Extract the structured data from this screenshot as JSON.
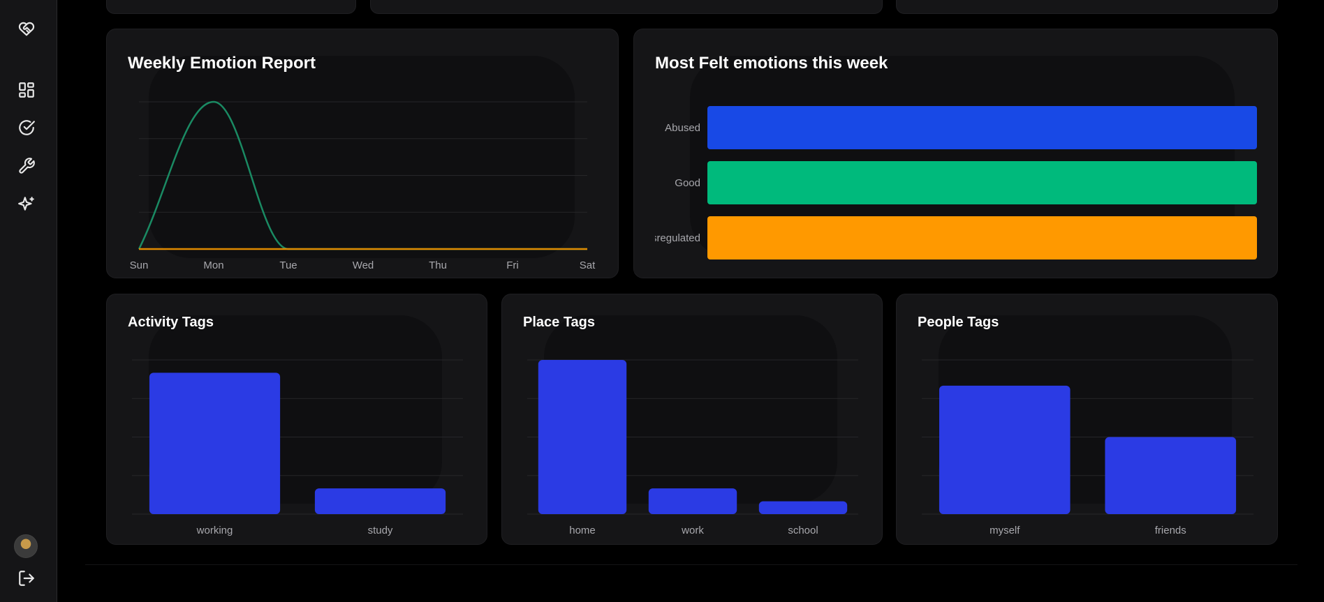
{
  "sidebar": {
    "nav": [
      {
        "name": "dashboard-icon"
      },
      {
        "name": "check-circle-icon"
      },
      {
        "name": "wrench-icon"
      },
      {
        "name": "sparkles-icon"
      }
    ],
    "logo": "heart-handshake-icon",
    "logout": "logout-icon"
  },
  "cards": {
    "weekly": {
      "title": "Weekly Emotion Report"
    },
    "most_felt": {
      "title": "Most Felt emotions this week"
    },
    "activity": {
      "title": "Activity Tags"
    },
    "place": {
      "title": "Place Tags"
    },
    "people": {
      "title": "People Tags"
    }
  },
  "colors": {
    "background": "#000000",
    "card": "#151517",
    "green_line": "#1a8a63",
    "orange_line": "#e08a00",
    "blue": "#1849e6",
    "green": "#00ba7c",
    "orange": "#ff9900",
    "tag_blue": "#2b3be4",
    "grid": "#262629",
    "tick": "#a8a8ad"
  },
  "chart_data": [
    {
      "type": "line",
      "title": "Weekly Emotion Report",
      "x": [
        "Sun",
        "Mon",
        "Tue",
        "Wed",
        "Thu",
        "Fri",
        "Sat"
      ],
      "series": [
        {
          "values": [
            0,
            4,
            0,
            0,
            0,
            0,
            0
          ],
          "color": "#1a8a63"
        },
        {
          "values": [
            0,
            0,
            0,
            0,
            0,
            0,
            0
          ],
          "color": "#e08a00"
        }
      ],
      "ylim": [
        0,
        4
      ],
      "grid": true
    },
    {
      "type": "bar",
      "orientation": "horizontal",
      "title": "Most Felt emotions this week",
      "categories": [
        "Abused",
        "Good",
        "Dysregulated"
      ],
      "values": [
        1,
        1,
        1
      ],
      "colors": [
        "#1849e6",
        "#00ba7c",
        "#ff9900"
      ]
    },
    {
      "type": "bar",
      "title": "Activity Tags",
      "categories": [
        "working",
        "study"
      ],
      "values": [
        5.5,
        1
      ],
      "ylim": [
        0,
        6
      ],
      "grid": true
    },
    {
      "type": "bar",
      "title": "Place Tags",
      "categories": [
        "home",
        "work",
        "school"
      ],
      "values": [
        6,
        1,
        0.5
      ],
      "ylim": [
        0,
        6
      ],
      "grid": true
    },
    {
      "type": "bar",
      "title": "People Tags",
      "categories": [
        "myself",
        "friends"
      ],
      "values": [
        5,
        3
      ],
      "ylim": [
        0,
        6
      ],
      "grid": true
    }
  ]
}
